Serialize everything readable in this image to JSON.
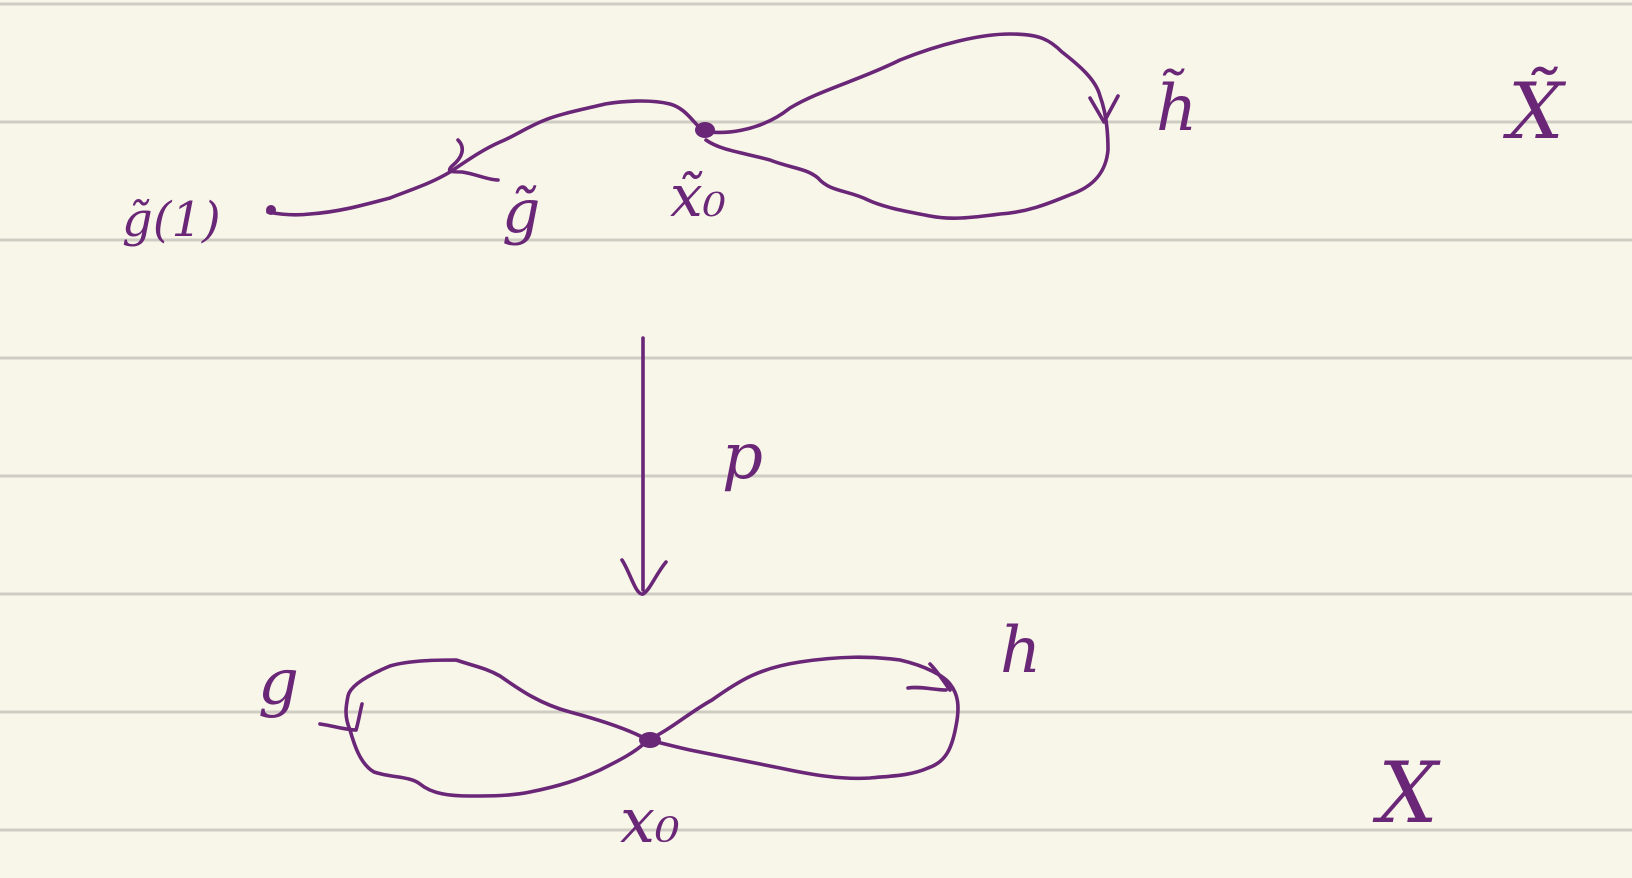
{
  "colors": {
    "background": "#f8f6e8",
    "ruled_line": "#cfccc4",
    "ink": "#6a2677"
  },
  "notebook": {
    "ruled_lines": 8
  },
  "top_space": {
    "name": "X̃",
    "basepoint": "x̃₀",
    "loop_right": "h̃",
    "path_left": "g̃",
    "path_endpoint": "g̃(1)"
  },
  "projection": {
    "label": "p"
  },
  "bottom_space": {
    "name": "X",
    "basepoint": "x₀",
    "loop_left": "g",
    "loop_right": "h"
  }
}
